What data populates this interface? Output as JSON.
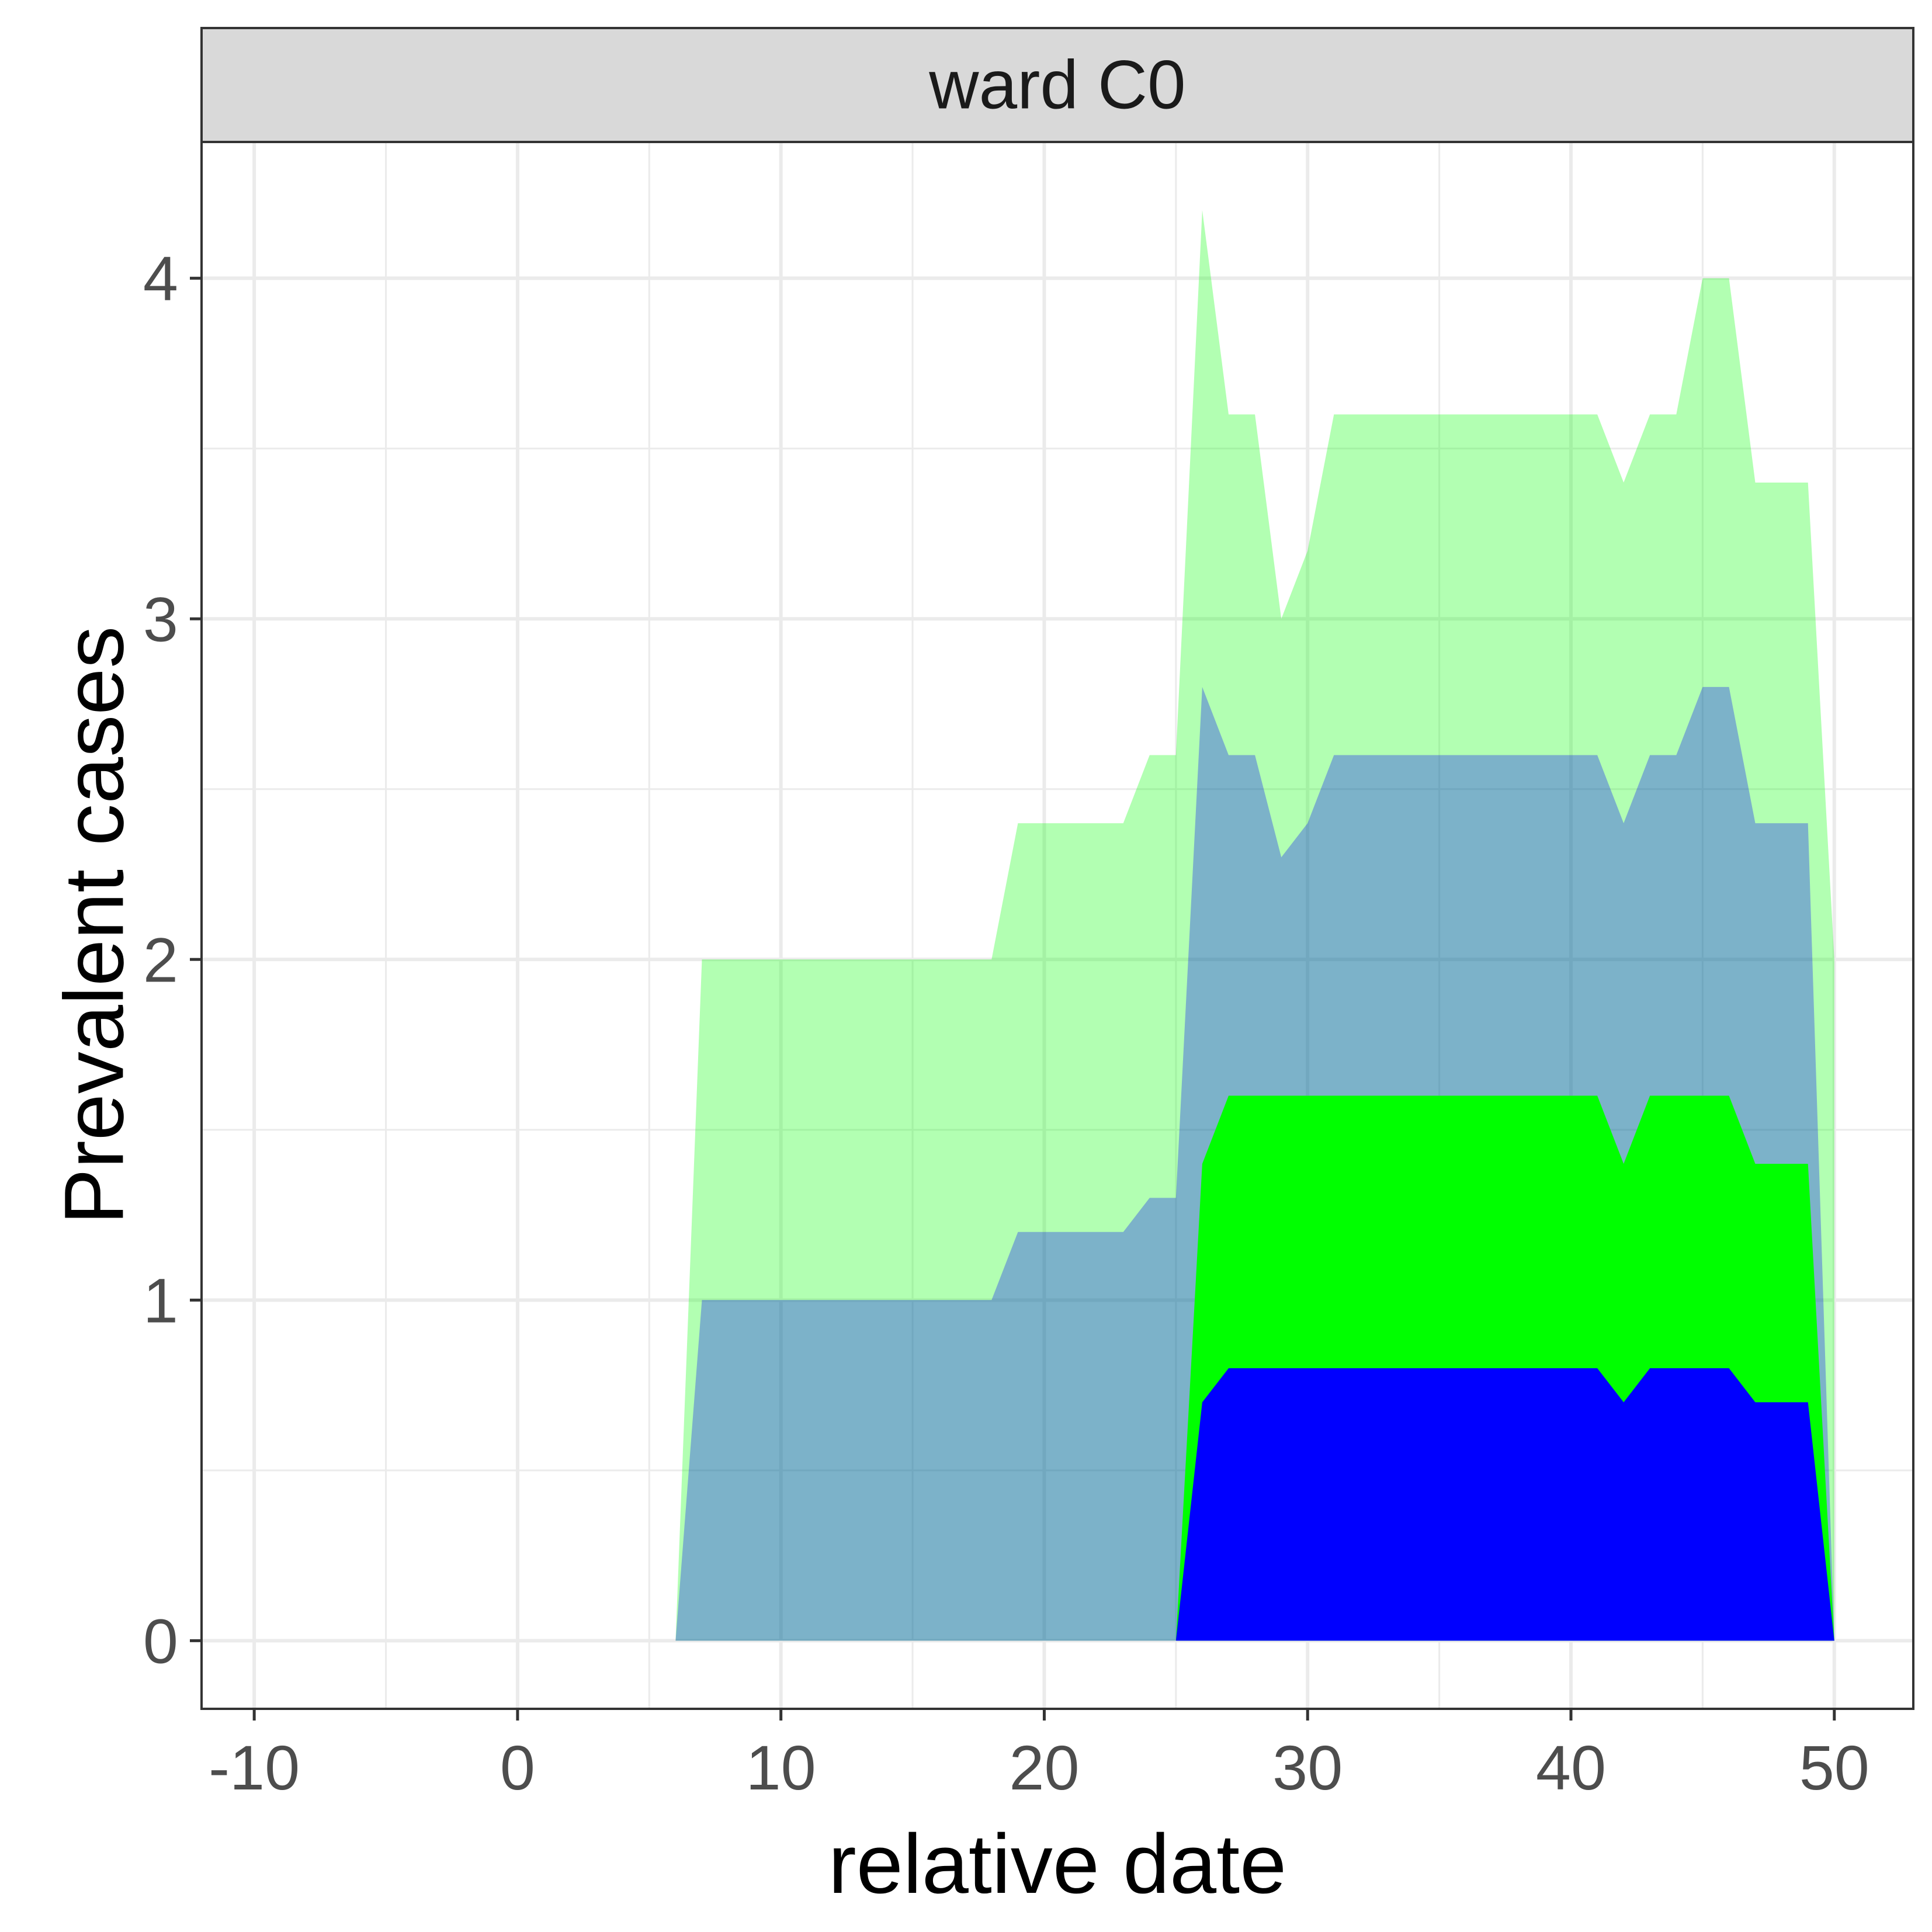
{
  "chart_data": {
    "type": "area",
    "facet_label": "ward C0",
    "xlabel": "relative date",
    "ylabel": "Prevalent cases",
    "xlim": [
      -12,
      53
    ],
    "ylim": [
      -0.2,
      4.4
    ],
    "x_ticks": [
      -10,
      0,
      10,
      20,
      30,
      40,
      50
    ],
    "x_tick_labels": [
      "-10",
      "0",
      "10",
      "20",
      "30",
      "40",
      "50"
    ],
    "y_ticks": [
      0,
      1,
      2,
      3,
      4
    ],
    "y_tick_labels": [
      "0",
      "1",
      "2",
      "3",
      "4"
    ],
    "grid": true,
    "legend": "none",
    "colors": {
      "strip_bg": "#d9d9d9",
      "panel_border": "#333333",
      "grid": "#ebebeb"
    },
    "series": [
      {
        "fill": "#00ff00",
        "opacity": 0.3,
        "points": [
          [
            6,
            0
          ],
          [
            7,
            2
          ],
          [
            18,
            2
          ],
          [
            19,
            2.4
          ],
          [
            23,
            2.4
          ],
          [
            24,
            2.6
          ],
          [
            25,
            2.6
          ],
          [
            26,
            4.2
          ],
          [
            27,
            3.6
          ],
          [
            28,
            3.6
          ],
          [
            29,
            3.0
          ],
          [
            30,
            3.2
          ],
          [
            31,
            3.6
          ],
          [
            41,
            3.6
          ],
          [
            42,
            3.4
          ],
          [
            43,
            3.6
          ],
          [
            44,
            3.6
          ],
          [
            45,
            4.0
          ],
          [
            46,
            4.0
          ],
          [
            47,
            3.4
          ],
          [
            49,
            3.4
          ],
          [
            50,
            2.0
          ],
          [
            50,
            0
          ]
        ]
      },
      {
        "fill": "#0000ff",
        "opacity": 0.3,
        "points": [
          [
            6,
            0
          ],
          [
            7,
            1
          ],
          [
            18,
            1
          ],
          [
            19,
            1.2
          ],
          [
            23,
            1.2
          ],
          [
            24,
            1.3
          ],
          [
            25,
            1.3
          ],
          [
            26,
            2.8
          ],
          [
            27,
            2.6
          ],
          [
            28,
            2.6
          ],
          [
            29,
            2.3
          ],
          [
            30,
            2.4
          ],
          [
            31,
            2.6
          ],
          [
            41,
            2.6
          ],
          [
            42,
            2.4
          ],
          [
            43,
            2.6
          ],
          [
            44,
            2.6
          ],
          [
            45,
            2.8
          ],
          [
            46,
            2.8
          ],
          [
            47,
            2.4
          ],
          [
            49,
            2.4
          ],
          [
            50,
            0
          ]
        ]
      },
      {
        "fill": "#00ff00",
        "opacity": 1,
        "points": [
          [
            25,
            0
          ],
          [
            26,
            1.4
          ],
          [
            27,
            1.6
          ],
          [
            41,
            1.6
          ],
          [
            42,
            1.4
          ],
          [
            43,
            1.6
          ],
          [
            45,
            1.6
          ],
          [
            46,
            1.6
          ],
          [
            47,
            1.4
          ],
          [
            49,
            1.4
          ],
          [
            50,
            0
          ]
        ]
      },
      {
        "fill": "#0000ff",
        "opacity": 1,
        "points": [
          [
            25,
            0
          ],
          [
            26,
            0.7
          ],
          [
            27,
            0.8
          ],
          [
            41,
            0.8
          ],
          [
            42,
            0.7
          ],
          [
            43,
            0.8
          ],
          [
            46,
            0.8
          ],
          [
            47,
            0.7
          ],
          [
            49,
            0.7
          ],
          [
            50,
            0
          ]
        ]
      }
    ]
  }
}
